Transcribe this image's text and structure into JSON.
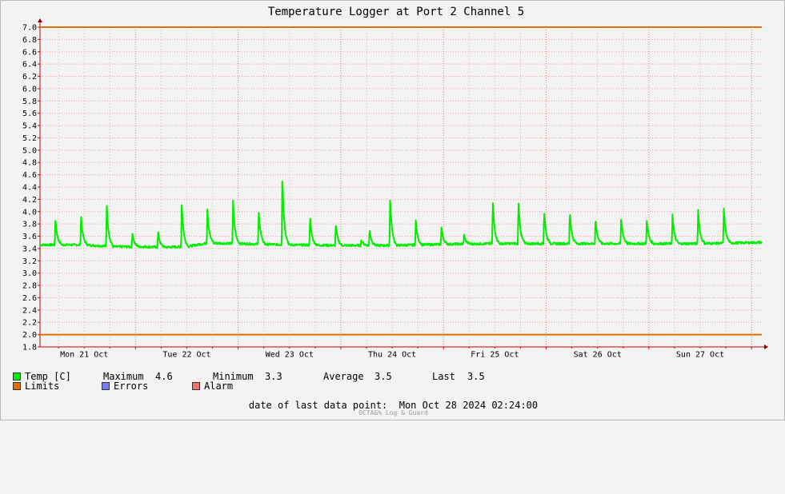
{
  "chart_data": {
    "type": "line",
    "title": "Temperature Logger at Port 2 Channel 5",
    "ylim": [
      1.8,
      7.0
    ],
    "yticks": [
      "7.0",
      "6.8",
      "6.6",
      "6.4",
      "6.2",
      "6.0",
      "5.8",
      "5.6",
      "5.4",
      "5.2",
      "5.0",
      "4.8",
      "4.6",
      "4.4",
      "4.2",
      "4.0",
      "3.8",
      "3.6",
      "3.4",
      "3.2",
      "3.0",
      "2.8",
      "2.6",
      "2.4",
      "2.2",
      "2.0",
      "1.8"
    ],
    "xlabels": [
      "Mon 21 Oct",
      "Tue 22 Oct",
      "Wed 23 Oct",
      "Thu 24 Oct",
      "Fri 25 Oct",
      "Sat 26 Oct",
      "Sun 27 Oct"
    ],
    "x_unit": "days since Mon 21 Oct 00:00",
    "xlim": [
      -0.43,
      6.6
    ],
    "grid": true,
    "limits": {
      "upper": 7.0,
      "lower": 2.0,
      "color": "#e07000"
    },
    "series": [
      {
        "name": "Temp [C]",
        "color": "#00ee00",
        "baseline": [
          [
            -0.43,
            3.46
          ],
          [
            0.0,
            3.46
          ],
          [
            0.3,
            3.43
          ],
          [
            0.6,
            3.43
          ],
          [
            0.75,
            3.42
          ],
          [
            1.0,
            3.43
          ],
          [
            1.2,
            3.49
          ],
          [
            1.5,
            3.48
          ],
          [
            2.0,
            3.46
          ],
          [
            2.5,
            3.45
          ],
          [
            3.0,
            3.45
          ],
          [
            3.5,
            3.47
          ],
          [
            4.0,
            3.48
          ],
          [
            4.5,
            3.48
          ],
          [
            5.0,
            3.48
          ],
          [
            5.5,
            3.48
          ],
          [
            6.0,
            3.48
          ],
          [
            6.6,
            3.5
          ]
        ],
        "peaks": [
          [
            -0.28,
            3.9
          ],
          [
            -0.03,
            3.93
          ],
          [
            0.22,
            4.12
          ],
          [
            0.47,
            3.65
          ],
          [
            0.72,
            3.68
          ],
          [
            0.95,
            4.15
          ],
          [
            1.2,
            4.05
          ],
          [
            1.45,
            4.19
          ],
          [
            1.7,
            4.03
          ],
          [
            1.93,
            4.61
          ],
          [
            2.2,
            3.92
          ],
          [
            2.45,
            3.82
          ],
          [
            2.7,
            3.55
          ],
          [
            2.78,
            3.71
          ],
          [
            2.98,
            4.24
          ],
          [
            3.23,
            3.86
          ],
          [
            3.48,
            3.75
          ],
          [
            3.7,
            3.62
          ],
          [
            3.98,
            4.18
          ],
          [
            4.23,
            4.19
          ],
          [
            4.48,
            4.04
          ],
          [
            4.73,
            4.03
          ],
          [
            4.98,
            3.9
          ],
          [
            5.23,
            3.92
          ],
          [
            5.48,
            3.89
          ],
          [
            5.73,
            3.96
          ],
          [
            5.98,
            4.04
          ],
          [
            6.23,
            4.08
          ]
        ]
      }
    ]
  },
  "legend": {
    "row1": {
      "temp_label": "Temp [C]",
      "max_label": "Maximum",
      "max_value": "4.6",
      "min_label": "Minimum",
      "min_value": "3.3",
      "avg_label": "Average",
      "avg_value": "3.5",
      "last_label": "Last",
      "last_value": "3.5"
    },
    "row2": {
      "limits_label": "Limits",
      "errors_label": "Errors",
      "alarm_label": "Alarm"
    },
    "colors": {
      "temp": "#00ee00",
      "limits": "#e07000",
      "errors": "#7878ff",
      "alarm": "#ee7070"
    }
  },
  "footer": {
    "last_point_label": "date of last data point:",
    "last_point_value": "Mon Oct 28 2024 02:24:00"
  },
  "credit": "OCTA&% Log & Guard"
}
